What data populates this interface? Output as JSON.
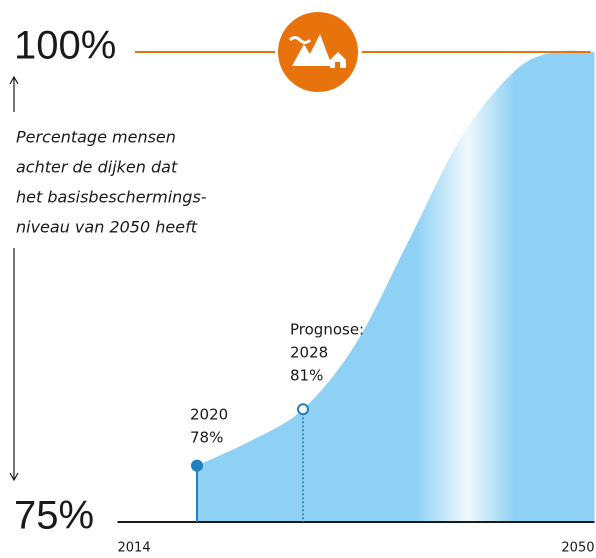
{
  "chart_data": {
    "type": "area",
    "ylabel": [
      "Percentage mensen",
      "achter de dijken dat",
      "het basisbeschermings-",
      "niveau van 2050 heeft"
    ],
    "x": [
      2020,
      2024,
      2028,
      2032,
      2036,
      2040,
      2044,
      2047,
      2050
    ],
    "series": [
      {
        "name": "Percentage",
        "color": "#8fd1f4",
        "values": [
          78,
          79.3,
          81,
          84.5,
          90,
          95.5,
          99,
          100,
          100
        ]
      }
    ],
    "annotations": [
      {
        "lines": [
          "2020",
          "78%"
        ]
      },
      {
        "lines": [
          "Prognose:",
          "2028",
          "81%"
        ]
      }
    ],
    "xlim": [
      2014,
      2050
    ],
    "xticks": [
      2014,
      2050
    ],
    "ylim": [
      75,
      100
    ],
    "yticks": [
      {
        "value": 75,
        "label": "75%"
      },
      {
        "value": 100,
        "label": "100%"
      }
    ]
  }
}
